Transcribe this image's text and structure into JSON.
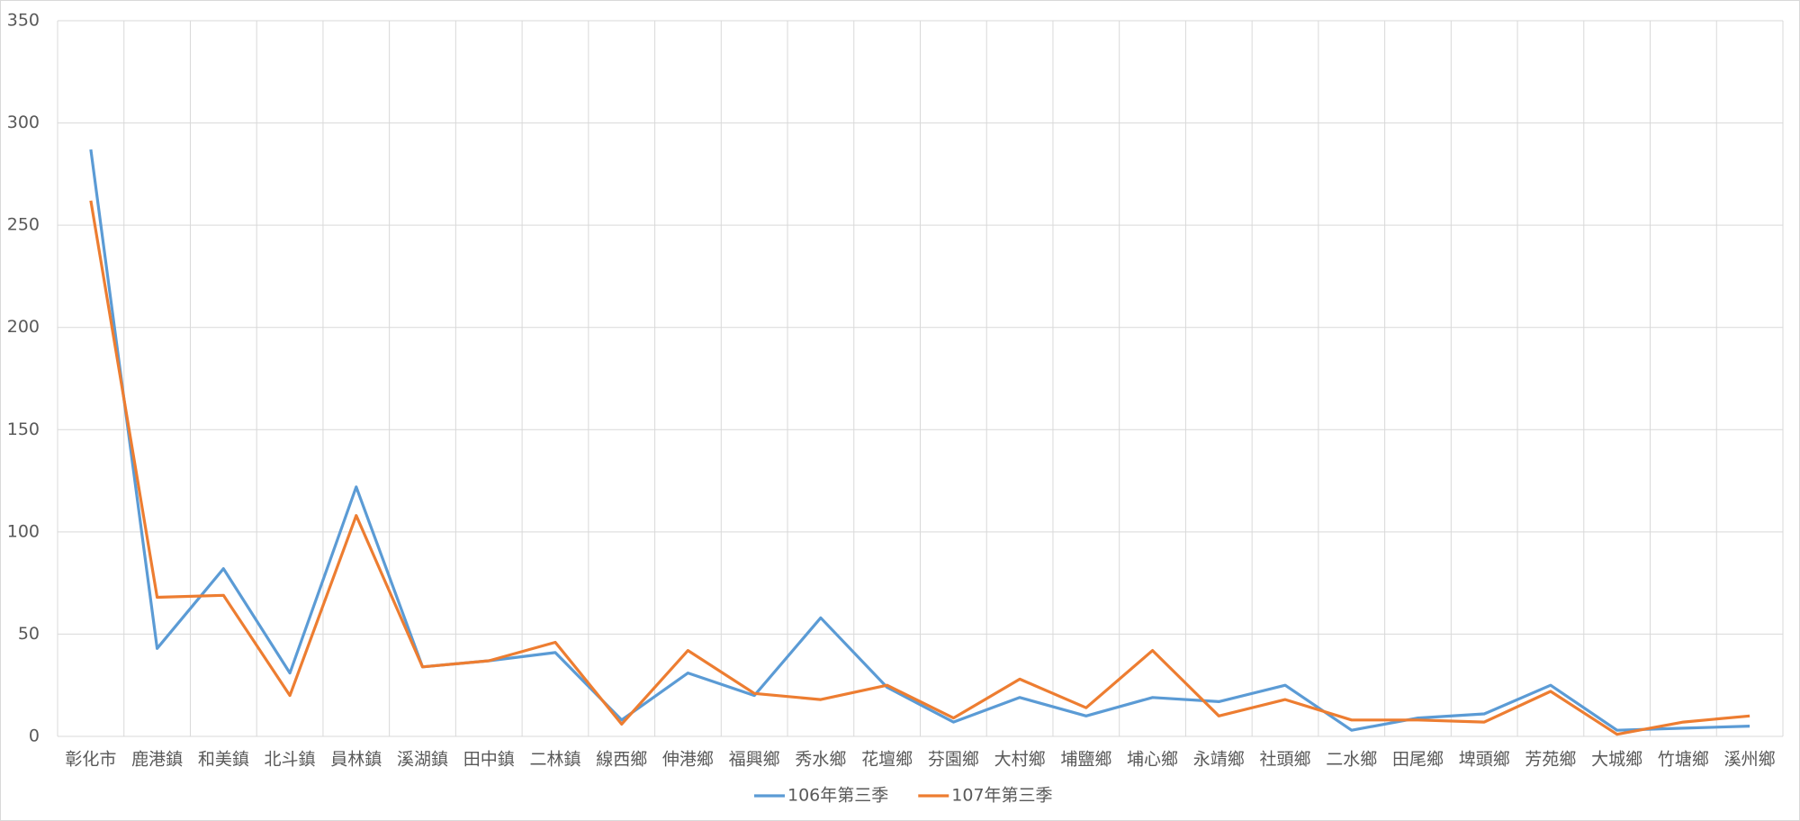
{
  "chart_data": {
    "type": "line",
    "categories": [
      "彰化市",
      "鹿港鎮",
      "和美鎮",
      "北斗鎮",
      "員林鎮",
      "溪湖鎮",
      "田中鎮",
      "二林鎮",
      "線西鄉",
      "伸港鄉",
      "福興鄉",
      "秀水鄉",
      "花壇鄉",
      "芬園鄉",
      "大村鄉",
      "埔鹽鄉",
      "埔心鄉",
      "永靖鄉",
      "社頭鄉",
      "二水鄉",
      "田尾鄉",
      "埤頭鄉",
      "芳苑鄉",
      "大城鄉",
      "竹塘鄉",
      "溪州鄉"
    ],
    "series": [
      {
        "name": "106年第三季",
        "color": "#5b9bd5",
        "values": [
          287,
          43,
          82,
          31,
          122,
          34,
          37,
          41,
          8,
          31,
          20,
          58,
          24,
          7,
          19,
          10,
          19,
          17,
          25,
          3,
          9,
          11,
          25,
          3,
          4,
          5
        ]
      },
      {
        "name": "107年第三季",
        "color": "#ed7d31",
        "values": [
          262,
          68,
          69,
          20,
          108,
          34,
          37,
          46,
          6,
          42,
          21,
          18,
          25,
          9,
          28,
          14,
          42,
          10,
          18,
          8,
          8,
          7,
          22,
          1,
          7,
          10
        ]
      }
    ],
    "ylim": [
      0,
      350
    ],
    "yticks": [
      0,
      50,
      100,
      150,
      200,
      250,
      300,
      350
    ],
    "grid": true,
    "legend": "bottom"
  }
}
